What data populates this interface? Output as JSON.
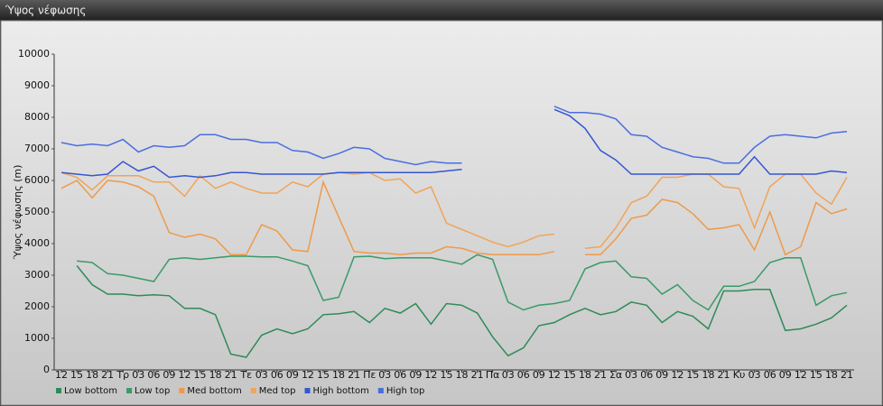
{
  "chart_data": {
    "type": "line",
    "title": "Ύψος νέφωσης",
    "ylabel": "Ύψος νέφωσης (m)",
    "categories": [
      "12",
      "15",
      "18",
      "21",
      "Τρ",
      "03",
      "06",
      "09",
      "12",
      "15",
      "18",
      "21",
      "Τε",
      "03",
      "06",
      "09",
      "12",
      "15",
      "18",
      "21",
      "Πε",
      "03",
      "06",
      "09",
      "12",
      "15",
      "18",
      "21",
      "Πα",
      "03",
      "06",
      "09",
      "12",
      "15",
      "18",
      "21",
      "Σα",
      "03",
      "06",
      "09",
      "12",
      "15",
      "18",
      "21",
      "Κυ",
      "03",
      "06",
      "09",
      "12",
      "15",
      "18",
      "21"
    ],
    "ylim": [
      0,
      10000
    ],
    "yticks": [
      0,
      1000,
      2000,
      3000,
      4000,
      5000,
      6000,
      7000,
      8000,
      9000,
      10000
    ],
    "grid": false,
    "legend": "bottom-left",
    "series": [
      {
        "name": "Low bottom",
        "color": "#2e8b57",
        "values": [
          null,
          3300,
          2700,
          2400,
          2400,
          2350,
          2380,
          2350,
          1950,
          1950,
          1750,
          500,
          400,
          1100,
          1300,
          1150,
          1300,
          1750,
          1780,
          1850,
          1500,
          1950,
          1800,
          2100,
          1450,
          2100,
          2050,
          1800,
          1050,
          450,
          700,
          1400,
          1500,
          1750,
          1950,
          1750,
          1850,
          2150,
          2050,
          1500,
          1850,
          1700,
          1300,
          2500,
          2500,
          2550,
          2550,
          1250,
          1300,
          1450,
          1650,
          2050
        ]
      },
      {
        "name": "Low top",
        "color": "#3a9a68",
        "values": [
          null,
          3450,
          3400,
          3050,
          3000,
          2900,
          2800,
          3500,
          3550,
          3500,
          3550,
          3600,
          3600,
          3580,
          3580,
          3450,
          3300,
          2200,
          2300,
          3580,
          3600,
          3520,
          3550,
          3550,
          3550,
          3450,
          3350,
          3650,
          3500,
          2150,
          1900,
          2050,
          2100,
          2200,
          3200,
          3400,
          3450,
          2950,
          2900,
          2400,
          2700,
          2200,
          1900,
          2650,
          2650,
          2800,
          3400,
          3550,
          3550,
          2050,
          2350,
          2450
        ]
      },
      {
        "name": "Med bottom",
        "color": "#ee9a4a",
        "values": [
          5750,
          6000,
          5450,
          6000,
          5950,
          5800,
          5500,
          4350,
          4200,
          4300,
          4150,
          3650,
          3650,
          4600,
          4400,
          3800,
          3750,
          5950,
          4850,
          3750,
          3700,
          3700,
          3650,
          3700,
          3700,
          3900,
          3850,
          3700,
          3650,
          3650,
          3650,
          3650,
          3750,
          null,
          3650,
          3650,
          4150,
          4800,
          4900,
          5400,
          5300,
          4950,
          4450,
          4500,
          4600,
          3800,
          5000,
          3650,
          3900,
          5300,
          4950,
          5100
        ]
      },
      {
        "name": "Med top",
        "color": "#f0a458",
        "values": [
          6250,
          6100,
          5700,
          6150,
          6150,
          6150,
          5950,
          5950,
          5500,
          6150,
          5750,
          5950,
          5750,
          5600,
          5600,
          5950,
          5800,
          6200,
          6250,
          6200,
          6250,
          6000,
          6050,
          5600,
          5800,
          4650,
          4450,
          4250,
          4050,
          3900,
          4050,
          4250,
          4300,
          null,
          3850,
          3900,
          4500,
          5300,
          5500,
          6100,
          6100,
          6200,
          6200,
          5800,
          5750,
          4500,
          5800,
          6200,
          6200,
          5600,
          5250,
          6100
        ]
      },
      {
        "name": "High bottom",
        "color": "#3556d0",
        "values": [
          6250,
          6200,
          6150,
          6200,
          6600,
          6300,
          6450,
          6100,
          6150,
          6100,
          6150,
          6250,
          6250,
          6200,
          6200,
          6200,
          6200,
          6200,
          6250,
          6250,
          6250,
          6250,
          6250,
          6250,
          6250,
          6300,
          6350,
          null,
          null,
          null,
          null,
          null,
          8250,
          8050,
          7650,
          6950,
          6650,
          6200,
          6200,
          6200,
          6200,
          6200,
          6200,
          6200,
          6200,
          6750,
          6200,
          6200,
          6200,
          6200,
          6300,
          6250
        ]
      },
      {
        "name": "High top",
        "color": "#4a6ee0",
        "values": [
          7200,
          7100,
          7150,
          7100,
          7300,
          6900,
          7100,
          7050,
          7100,
          7450,
          7450,
          7300,
          7300,
          7200,
          7200,
          6950,
          6900,
          6700,
          6850,
          7050,
          7000,
          6700,
          6600,
          6500,
          6600,
          6550,
          6550,
          null,
          null,
          null,
          null,
          null,
          8350,
          8150,
          8150,
          8100,
          7950,
          7450,
          7400,
          7050,
          6900,
          6750,
          6700,
          6550,
          6550,
          7050,
          7400,
          7450,
          7400,
          7350,
          7500,
          7550
        ]
      }
    ]
  }
}
